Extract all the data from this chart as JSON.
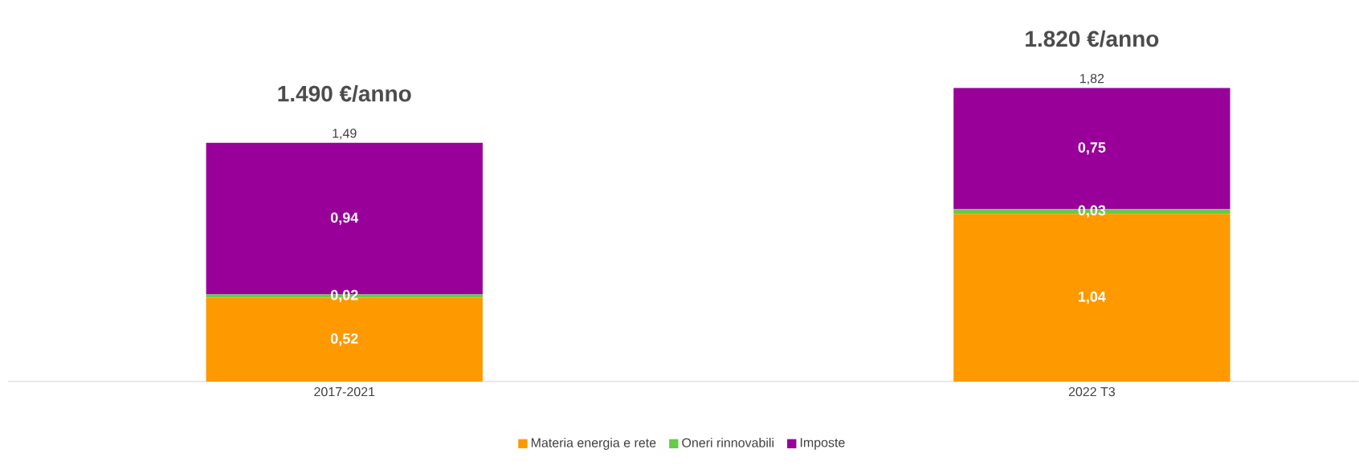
{
  "chart_data": {
    "type": "bar",
    "stacked": true,
    "legend": "bottom",
    "categories": [
      "2017-2021",
      "2022 T3"
    ],
    "series": [
      {
        "name": "Materia energia e rete",
        "color": "#ff9900",
        "values": [
          0.52,
          1.04
        ],
        "value_labels": [
          "0,52",
          "1,04"
        ]
      },
      {
        "name": "Oneri rinnovabili",
        "color": "#66cc44",
        "values": [
          0.02,
          0.03
        ],
        "value_labels": [
          "0,02",
          "0,03"
        ]
      },
      {
        "name": "Imposte",
        "color": "#990099",
        "values": [
          0.94,
          0.75
        ],
        "value_labels": [
          "0,94",
          "0,75"
        ]
      }
    ],
    "totals": [
      "1,49",
      "1,82"
    ],
    "annotations": [
      "1.490 €/anno",
      "1.820 €/anno"
    ]
  }
}
